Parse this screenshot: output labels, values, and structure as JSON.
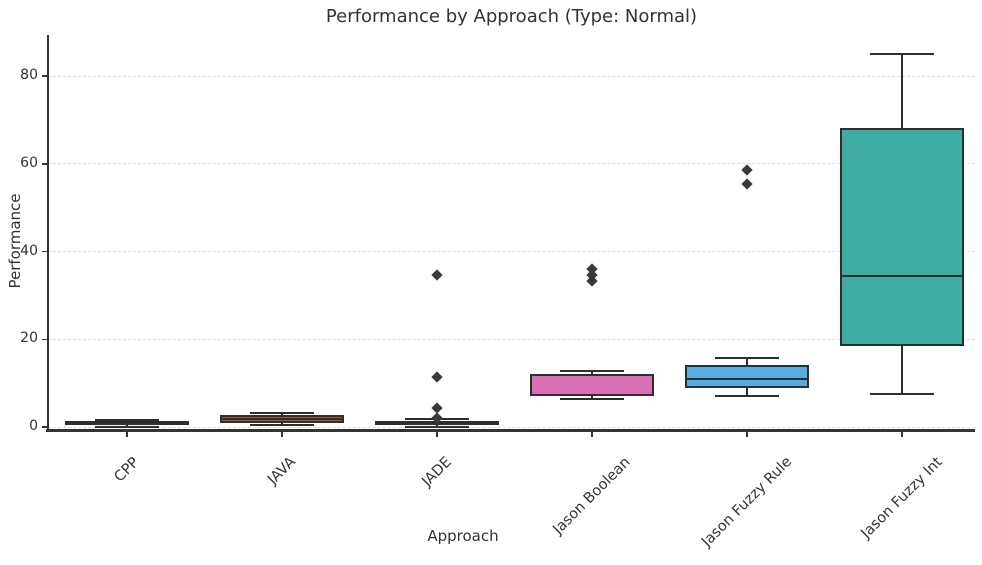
{
  "title": "Performance by Approach (Type: Normal)",
  "chart_data": {
    "type": "box",
    "title": "Performance by Approach (Type: Normal)",
    "xlabel": "Approach",
    "ylabel": "Performance",
    "categories": [
      "CPP",
      "JAVA",
      "JADE",
      "Jason Boolean",
      "Jason Fuzzy Rule",
      "Jason Fuzzy Int"
    ],
    "yticks": [
      0,
      20,
      40,
      60,
      80
    ],
    "ylim": [
      -2,
      89
    ],
    "grid": "horizontal-dashed",
    "legend": "none",
    "series": [
      {
        "name": "CPP",
        "whisker_low": 0.05,
        "q1": 0.45,
        "median": 0.8,
        "q3": 1.3,
        "whisker_high": 1.7,
        "outliers": [],
        "fill": "#424242"
      },
      {
        "name": "JAVA",
        "whisker_low": 0.4,
        "q1": 1.0,
        "median": 1.8,
        "q3": 2.7,
        "whisker_high": 3.1,
        "outliers": [],
        "fill": "#9b5c38"
      },
      {
        "name": "JADE",
        "whisker_low": 0.05,
        "q1": 0.35,
        "median": 0.8,
        "q3": 1.4,
        "whisker_high": 1.9,
        "outliers": [
          2.1,
          4.4,
          11.5,
          34.7
        ],
        "fill": "#424242"
      },
      {
        "name": "Jason Boolean",
        "whisker_low": 6.4,
        "q1": 7.0,
        "median": 7.4,
        "q3": 12.0,
        "whisker_high": 12.7,
        "outliers": [
          33.2,
          34.6,
          36.1
        ],
        "fill": "#db6fb5"
      },
      {
        "name": "Jason Fuzzy Rule",
        "whisker_low": 7.0,
        "q1": 8.9,
        "median": 10.9,
        "q3": 14.1,
        "whisker_high": 15.7,
        "outliers": [
          55.5,
          58.6
        ],
        "fill": "#57ace0"
      },
      {
        "name": "Jason Fuzzy Int",
        "whisker_low": 7.5,
        "q1": 18.4,
        "median": 34.5,
        "q3": 68.2,
        "whisker_high": 85.0,
        "outliers": [],
        "fill": "#40ada5"
      }
    ],
    "colors": {
      "edge": "#2e2e2e",
      "outlier": "#3a3a3a",
      "grid": "#dcdcdc",
      "spine": "#333333",
      "text": "#333333"
    }
  }
}
